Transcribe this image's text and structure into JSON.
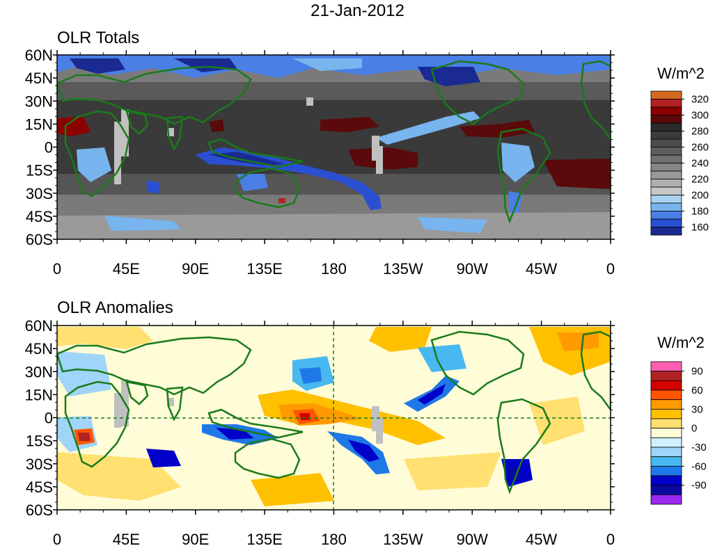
{
  "title": "21-Jan-2012",
  "panels": [
    {
      "title": "OLR Totals",
      "unit": "W/m^2",
      "colorbar": {
        "labels": [
          "320",
          "300",
          "280",
          "260",
          "240",
          "220",
          "200",
          "180",
          "160"
        ],
        "colors": [
          "#d2691e",
          "#b22222",
          "#8b0000",
          "#5a0a0a",
          "#2b2b2b",
          "#3c3c3c",
          "#4d4d4d",
          "#5e5e5e",
          "#707070",
          "#858585",
          "#9a9a9a",
          "#b0b0b0",
          "#c8c8c8",
          "#a7d3ee",
          "#78b4ee",
          "#4a7fe6",
          "#2a4fd0",
          "#1a2a90"
        ]
      }
    },
    {
      "title": "OLR Anomalies",
      "unit": "W/m^2",
      "colorbar": {
        "labels": [
          "90",
          "60",
          "30",
          "0",
          "-30",
          "-60",
          "-90"
        ],
        "colors": [
          "#ff5fb0",
          "#b22222",
          "#d40000",
          "#ff5500",
          "#ff9a00",
          "#ffc000",
          "#ffe070",
          "#fffcd8",
          "#d0f0ff",
          "#a0d4f8",
          "#48b8f0",
          "#1e78e8",
          "#0000c8",
          "#0a0aa0",
          "#9a28f0"
        ]
      }
    }
  ],
  "axes": {
    "y_labels": [
      "60N",
      "45N",
      "30N",
      "15N",
      "0",
      "15S",
      "30S",
      "45S",
      "60S"
    ],
    "x_labels": [
      "0",
      "45E",
      "90E",
      "135E",
      "180",
      "135W",
      "90W",
      "45W",
      "0"
    ]
  },
  "colors": {
    "coastline": "#1a7a1a",
    "missing": "#c0c0c0"
  }
}
